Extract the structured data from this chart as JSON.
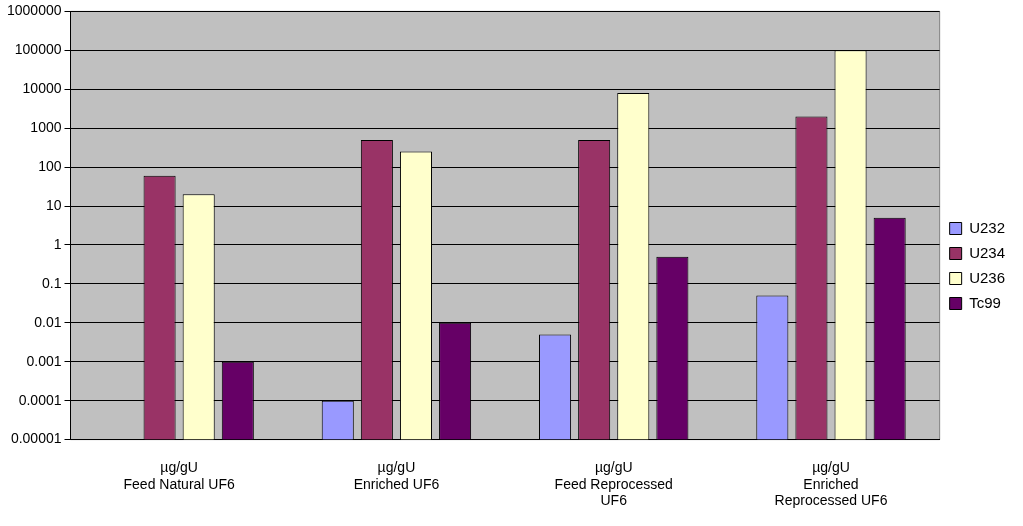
{
  "chart_data": {
    "type": "bar",
    "categories": [
      "µg/gU\nFeed Natural UF6",
      "µg/gU\nEnriched UF6",
      "µg/gU\nFeed Reprocessed UF6",
      "µg/gU\nEnriched Reprocessed UF6"
    ],
    "series": [
      {
        "name": "U232",
        "color": "#9999ff",
        "values": [
          null,
          0.0001,
          0.005,
          0.05
        ]
      },
      {
        "name": "U234",
        "color": "#993366",
        "values": [
          60,
          500,
          500,
          2000
        ]
      },
      {
        "name": "U236",
        "color": "#ffffcc",
        "values": [
          20,
          250,
          8000,
          100000
        ]
      },
      {
        "name": "Tc99",
        "color": "#660066",
        "values": [
          0.001,
          0.01,
          0.5,
          5
        ]
      }
    ],
    "log": true,
    "ylim": [
      1e-05,
      1000000
    ],
    "yticks": [
      {
        "value": 1e-05,
        "label": "0.00001"
      },
      0.0001,
      0.001,
      0.01,
      0.1,
      1,
      10,
      100,
      1000,
      10000,
      100000,
      1000000
    ],
    "grid": "y",
    "legend": "right"
  }
}
